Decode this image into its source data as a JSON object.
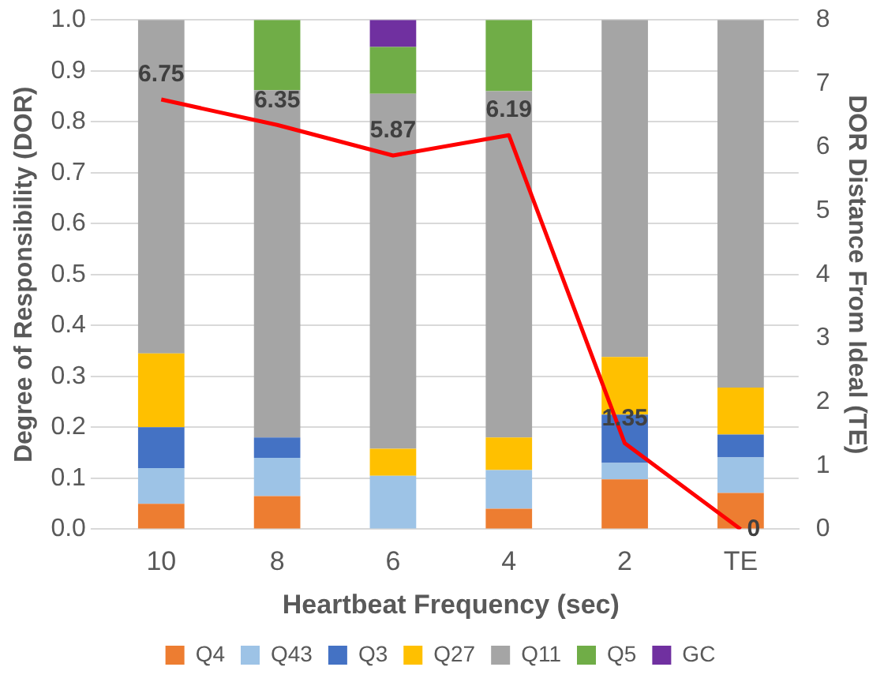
{
  "chart_data": {
    "type": "bar",
    "stacked": true,
    "xlabel": "Heartbeat Frequency (sec)",
    "ylabel": "Degree of Responsibility (DOR)",
    "y2label": "DOR Distance From Ideal (TE)",
    "categories": [
      "10",
      "8",
      "6",
      "4",
      "2",
      "TE"
    ],
    "series": [
      {
        "name": "Q4",
        "color": "#ed7d31",
        "values": [
          0.05,
          0.065,
          0,
          0.04,
          0.098,
          0.071
        ]
      },
      {
        "name": "Q43",
        "color": "#9dc3e6",
        "values": [
          0.07,
          0.075,
          0.105,
          0.076,
          0.032,
          0.07
        ]
      },
      {
        "name": "Q3",
        "color": "#4472c4",
        "values": [
          0.08,
          0.04,
          0,
          0,
          0.095,
          0.045
        ]
      },
      {
        "name": "Q27",
        "color": "#ffc000",
        "values": [
          0.145,
          0,
          0.053,
          0.064,
          0.113,
          0.092
        ]
      },
      {
        "name": "Q11",
        "color": "#a5a5a5",
        "values": [
          0.655,
          0.682,
          0.697,
          0.68,
          0.662,
          0.722
        ]
      },
      {
        "name": "Q5",
        "color": "#70ad47",
        "values": [
          0,
          0.138,
          0.092,
          0.14,
          0,
          0
        ]
      },
      {
        "name": "GC",
        "color": "#7030a0",
        "values": [
          0,
          0,
          0.053,
          0,
          0,
          0
        ]
      },
      {
        "type": "line",
        "axis": "y2",
        "color": "#ff0000",
        "values": [
          6.75,
          6.35,
          5.87,
          6.19,
          1.35,
          0
        ],
        "value_labels": [
          "6.75",
          "6.35",
          "5.87",
          "6.19",
          "1.35",
          "0"
        ]
      }
    ],
    "ylim": [
      0,
      1
    ],
    "yticks": [
      {
        "value": 0,
        "label": "0.0"
      },
      {
        "value": 0.1,
        "label": "0.1"
      },
      {
        "value": 0.2,
        "label": "0.2"
      },
      {
        "value": 0.3,
        "label": "0.3"
      },
      {
        "value": 0.4,
        "label": "0.4"
      },
      {
        "value": 0.5,
        "label": "0.5"
      },
      {
        "value": 0.6,
        "label": "0.6"
      },
      {
        "value": 0.7,
        "label": "0.7"
      },
      {
        "value": 0.8,
        "label": "0.8"
      },
      {
        "value": 0.9,
        "label": "0.9"
      },
      {
        "value": 1,
        "label": "1.0"
      }
    ],
    "y2lim": [
      0,
      8
    ],
    "y2ticks": [
      0,
      1,
      2,
      3,
      4,
      5,
      6,
      7,
      8
    ],
    "grid": "y",
    "legend": "bottom",
    "marker": "none"
  }
}
